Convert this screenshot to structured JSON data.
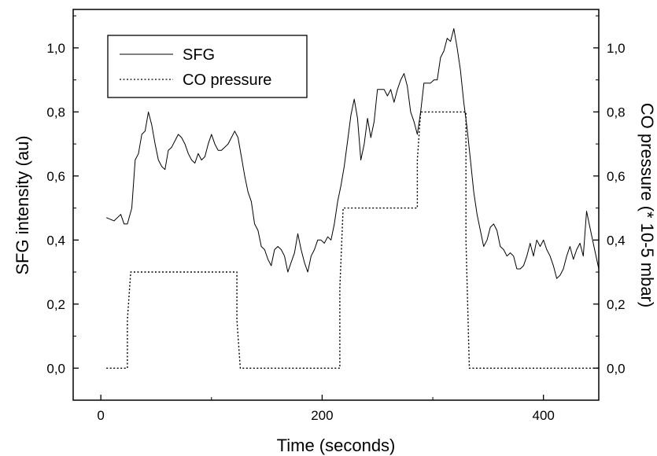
{
  "chart_data": {
    "type": "line",
    "xlabel": "Time (seconds)",
    "ylabel": "SFG intensity (au)",
    "y2label": "CO pressure (* 10-5 mbar)",
    "xlim": [
      -25,
      450
    ],
    "ylim": [
      -0.1,
      1.12
    ],
    "y2lim": [
      -0.1,
      1.12
    ],
    "xticks": [
      {
        "value": 0,
        "label": "0"
      },
      {
        "value": 200,
        "label": "200"
      },
      {
        "value": 400,
        "label": "400"
      }
    ],
    "yticks": [
      {
        "value": 0.0,
        "label": "0,0"
      },
      {
        "value": 0.2,
        "label": "0,2"
      },
      {
        "value": 0.4,
        "label": "0,4"
      },
      {
        "value": 0.6,
        "label": "0,6"
      },
      {
        "value": 0.8,
        "label": "0,8"
      },
      {
        "value": 1.0,
        "label": "1,0"
      }
    ],
    "y2ticks": [
      {
        "value": 0.0,
        "label": "0,0"
      },
      {
        "value": 0.2,
        "label": "0,2"
      },
      {
        "value": 0.4,
        "label": "0,4"
      },
      {
        "value": 0.6,
        "label": "0,6"
      },
      {
        "value": 0.8,
        "label": "0,8"
      },
      {
        "value": 1.0,
        "label": "1,0"
      }
    ],
    "legend": {
      "placement": "top-left"
    },
    "series": [
      {
        "name": "SFG",
        "style": "solid",
        "axis": "left",
        "color": "#000000",
        "x": [
          5,
          12,
          18,
          21,
          24,
          28,
          31,
          34,
          37,
          40,
          43,
          46,
          49,
          52,
          55,
          58,
          61,
          64,
          67,
          70,
          73,
          76,
          79,
          82,
          85,
          88,
          91,
          94,
          97,
          100,
          103,
          106,
          109,
          112,
          115,
          118,
          121,
          124,
          127,
          130,
          133,
          136,
          139,
          142,
          145,
          148,
          151,
          154,
          157,
          160,
          163,
          166,
          169,
          172,
          175,
          178,
          181,
          184,
          187,
          190,
          193,
          196,
          199,
          202,
          205,
          208,
          211,
          214,
          217,
          220,
          223,
          226,
          229,
          232,
          235,
          238,
          241,
          244,
          247,
          250,
          253,
          256,
          259,
          262,
          265,
          268,
          271,
          274,
          277,
          280,
          283,
          286,
          289,
          292,
          295,
          298,
          301,
          304,
          307,
          310,
          313,
          316,
          319,
          322,
          325,
          328,
          331,
          334,
          337,
          340,
          343,
          346,
          349,
          352,
          355,
          358,
          361,
          364,
          367,
          370,
          373,
          376,
          379,
          382,
          385,
          388,
          391,
          394,
          397,
          400,
          403,
          406,
          409,
          412,
          415,
          418,
          421,
          424,
          427,
          430,
          433,
          436,
          439,
          442,
          445,
          450
        ],
        "y": [
          0.47,
          0.46,
          0.48,
          0.45,
          0.45,
          0.5,
          0.65,
          0.67,
          0.73,
          0.74,
          0.8,
          0.76,
          0.7,
          0.65,
          0.63,
          0.62,
          0.68,
          0.69,
          0.71,
          0.73,
          0.72,
          0.7,
          0.67,
          0.65,
          0.64,
          0.67,
          0.65,
          0.66,
          0.7,
          0.73,
          0.7,
          0.68,
          0.68,
          0.69,
          0.7,
          0.72,
          0.74,
          0.72,
          0.66,
          0.6,
          0.55,
          0.52,
          0.45,
          0.43,
          0.38,
          0.37,
          0.34,
          0.32,
          0.37,
          0.38,
          0.37,
          0.35,
          0.3,
          0.33,
          0.36,
          0.42,
          0.37,
          0.33,
          0.3,
          0.35,
          0.37,
          0.4,
          0.4,
          0.39,
          0.41,
          0.4,
          0.45,
          0.52,
          0.57,
          0.63,
          0.71,
          0.79,
          0.84,
          0.78,
          0.65,
          0.7,
          0.78,
          0.72,
          0.77,
          0.87,
          0.87,
          0.87,
          0.85,
          0.87,
          0.83,
          0.87,
          0.9,
          0.92,
          0.88,
          0.8,
          0.77,
          0.73,
          0.8,
          0.89,
          0.89,
          0.89,
          0.9,
          0.9,
          0.97,
          0.99,
          1.03,
          1.02,
          1.06,
          1.0,
          0.93,
          0.83,
          0.75,
          0.65,
          0.55,
          0.48,
          0.43,
          0.38,
          0.4,
          0.44,
          0.45,
          0.43,
          0.38,
          0.37,
          0.35,
          0.36,
          0.35,
          0.31,
          0.31,
          0.32,
          0.35,
          0.39,
          0.35,
          0.4,
          0.38,
          0.4,
          0.37,
          0.35,
          0.32,
          0.28,
          0.29,
          0.31,
          0.35,
          0.38,
          0.34,
          0.37,
          0.39,
          0.35,
          0.49,
          0.44,
          0.39,
          0.31
        ]
      },
      {
        "name": "CO pressure",
        "style": "dotted",
        "axis": "right",
        "color": "#000000",
        "x": [
          5,
          24,
          24,
          27,
          27,
          123,
          123,
          126,
          126,
          216,
          216,
          219,
          219,
          286,
          286,
          289,
          289,
          330,
          330,
          333,
          333,
          450
        ],
        "y": [
          0,
          0,
          0.15,
          0.3,
          0.3,
          0.3,
          0.15,
          0,
          0,
          0,
          0.25,
          0.5,
          0.5,
          0.5,
          0.65,
          0.8,
          0.8,
          0.8,
          0.4,
          0,
          0,
          0
        ]
      }
    ]
  }
}
